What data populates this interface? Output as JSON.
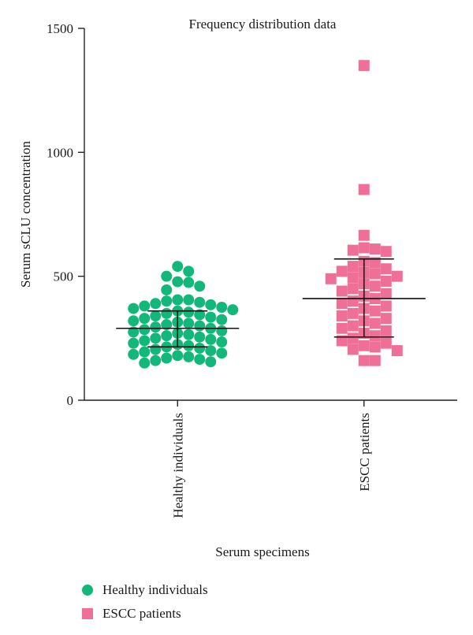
{
  "chart_data": {
    "type": "scatter",
    "title": "Frequency distribution data",
    "xlabel": "Serum specimens",
    "ylabel": "Serum sCLU concentration",
    "ylim": [
      0,
      1500
    ],
    "yticks": [
      0,
      500,
      1000,
      1500
    ],
    "grid": false,
    "legend_position": "bottom-left",
    "categories": [
      "Healthy individuals",
      "ESCC patients"
    ],
    "series": [
      {
        "name": "Healthy individuals",
        "marker": "circle",
        "color": "#12b879",
        "mean": 290,
        "sd_upper": 360,
        "sd_lower": 215,
        "values": [
          540,
          520,
          500,
          475,
          445,
          460,
          478,
          405,
          405,
          400,
          395,
          390,
          385,
          380,
          375,
          370,
          365,
          360,
          355,
          350,
          345,
          340,
          335,
          330,
          325,
          320,
          315,
          310,
          305,
          300,
          295,
          290,
          285,
          280,
          275,
          270,
          265,
          260,
          255,
          250,
          245,
          240,
          235,
          230,
          225,
          220,
          215,
          210,
          205,
          200,
          195,
          190,
          185,
          180,
          175,
          170,
          165,
          160,
          155,
          150
        ]
      },
      {
        "name": "ESCC patients",
        "marker": "square",
        "color": "#ef6f97",
        "mean": 410,
        "sd_upper": 570,
        "sd_lower": 255,
        "values": [
          1350,
          850,
          665,
          615,
          610,
          605,
          600,
          560,
          555,
          540,
          530,
          520,
          515,
          510,
          500,
          495,
          490,
          480,
          470,
          460,
          450,
          440,
          430,
          420,
          410,
          400,
          390,
          380,
          370,
          360,
          350,
          340,
          330,
          320,
          310,
          300,
          290,
          280,
          270,
          260,
          250,
          240,
          230,
          220,
          215,
          205,
          200,
          160,
          160
        ]
      }
    ]
  },
  "legend": {
    "items": [
      {
        "label": "Healthy individuals",
        "icon": "green-circle-marker"
      },
      {
        "label": "ESCC patients",
        "icon": "pink-square-marker"
      }
    ]
  }
}
